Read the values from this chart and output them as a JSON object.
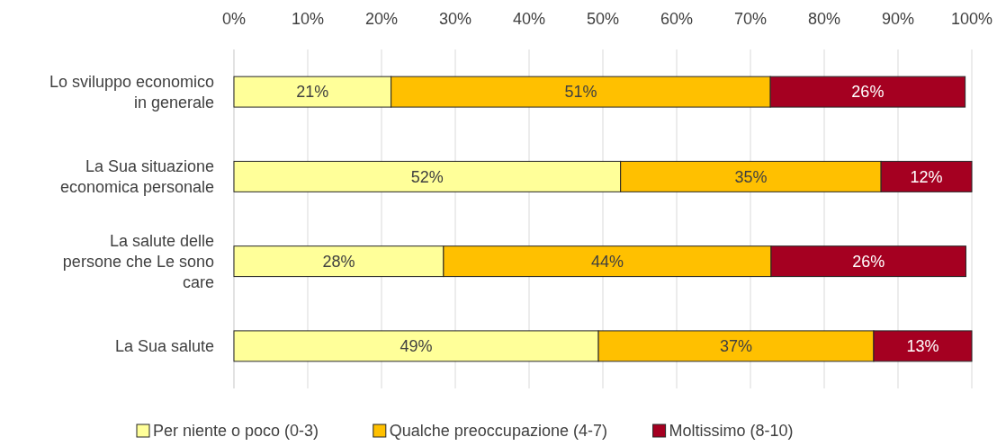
{
  "chart_data": {
    "type": "bar",
    "orientation": "horizontal",
    "stacked": true,
    "categories": [
      "Lo sviluppo economico in generale",
      "La Sua situazione economica personale",
      "La salute delle persone che Le sono care",
      "La Sua salute"
    ],
    "series": [
      {
        "name": "Per niente o poco (0-3)",
        "color": "#ffff99",
        "values": [
          21.3,
          52.4,
          28.4,
          49.4
        ],
        "value_labels": [
          "21%",
          "52%",
          "28%",
          "49%"
        ]
      },
      {
        "name": "Qualche preoccupazione (4-7)",
        "color": "#ffc000",
        "values": [
          51.4,
          35.3,
          44.4,
          37.3
        ],
        "value_labels": [
          "51%",
          "35%",
          "44%",
          "37%"
        ]
      },
      {
        "name": "Moltissimo (8-10)",
        "color": "#a50021",
        "values": [
          26.4,
          12.3,
          26.4,
          13.3
        ],
        "value_labels": [
          "26%",
          "12%",
          "26%",
          "13%"
        ]
      }
    ],
    "xlim": [
      0,
      100
    ],
    "xticks": [
      {
        "value": 0,
        "label": "0%"
      },
      {
        "value": 10,
        "label": "10%"
      },
      {
        "value": 20,
        "label": "20%"
      },
      {
        "value": 30,
        "label": "30%"
      },
      {
        "value": 40,
        "label": "40%"
      },
      {
        "value": 50,
        "label": "50%"
      },
      {
        "value": 60,
        "label": "60%"
      },
      {
        "value": 70,
        "label": "70%"
      },
      {
        "value": 80,
        "label": "80%"
      },
      {
        "value": 90,
        "label": "90%"
      },
      {
        "value": 100,
        "label": "100%"
      }
    ],
    "grid": "x",
    "legend": "bottom"
  }
}
